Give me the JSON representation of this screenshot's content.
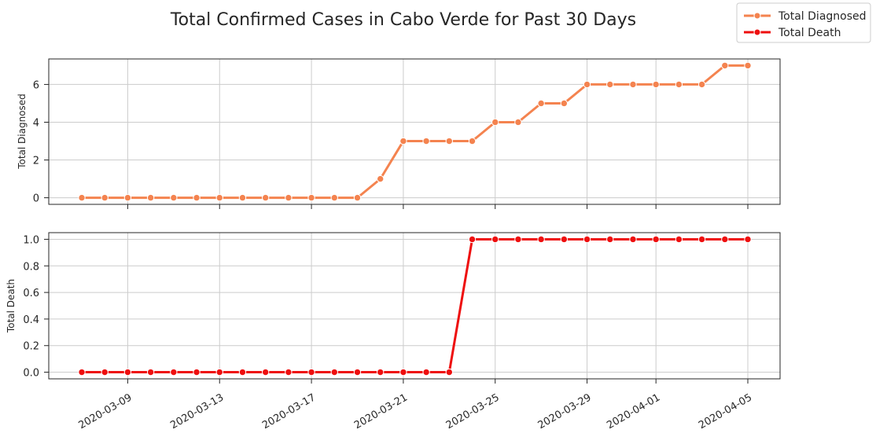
{
  "chart_data": {
    "type": "line",
    "title": "Total Confirmed Cases in Cabo Verde for Past 30 Days",
    "x": [
      "2020-03-07",
      "2020-03-08",
      "2020-03-09",
      "2020-03-10",
      "2020-03-11",
      "2020-03-12",
      "2020-03-13",
      "2020-03-14",
      "2020-03-15",
      "2020-03-16",
      "2020-03-17",
      "2020-03-18",
      "2020-03-19",
      "2020-03-20",
      "2020-03-21",
      "2020-03-22",
      "2020-03-23",
      "2020-03-24",
      "2020-03-25",
      "2020-03-26",
      "2020-03-27",
      "2020-03-28",
      "2020-03-29",
      "2020-03-30",
      "2020-03-31",
      "2020-04-01",
      "2020-04-02",
      "2020-04-03",
      "2020-04-04",
      "2020-04-05"
    ],
    "xticks": [
      "2020-03-09",
      "2020-03-13",
      "2020-03-17",
      "2020-03-21",
      "2020-03-25",
      "2020-03-29",
      "2020-04-01",
      "2020-04-05"
    ],
    "legend": {
      "placement": "top-right",
      "entries": [
        "Total Diagnosed",
        "Total Death"
      ]
    },
    "grid": true,
    "panels": [
      {
        "ylabel": "Total Diagnosed",
        "ylim": [
          -0.35,
          7.35
        ],
        "yticks": [
          "0",
          "2",
          "4",
          "6"
        ],
        "series": [
          {
            "name": "Total Diagnosed",
            "color": "#f4834f",
            "values": [
              0,
              0,
              0,
              0,
              0,
              0,
              0,
              0,
              0,
              0,
              0,
              0,
              0,
              1,
              3,
              3,
              3,
              3,
              4,
              4,
              5,
              5,
              6,
              6,
              6,
              6,
              6,
              6,
              7,
              7
            ]
          }
        ]
      },
      {
        "ylabel": "Total Death",
        "ylim": [
          -0.05,
          1.05
        ],
        "yticks": [
          "0.0",
          "0.2",
          "0.4",
          "0.6",
          "0.8",
          "1.0"
        ],
        "series": [
          {
            "name": "Total Death",
            "color": "#ee0f0f",
            "values": [
              0,
              0,
              0,
              0,
              0,
              0,
              0,
              0,
              0,
              0,
              0,
              0,
              0,
              0,
              0,
              0,
              0,
              1,
              1,
              1,
              1,
              1,
              1,
              1,
              1,
              1,
              1,
              1,
              1,
              1
            ]
          }
        ]
      }
    ]
  }
}
